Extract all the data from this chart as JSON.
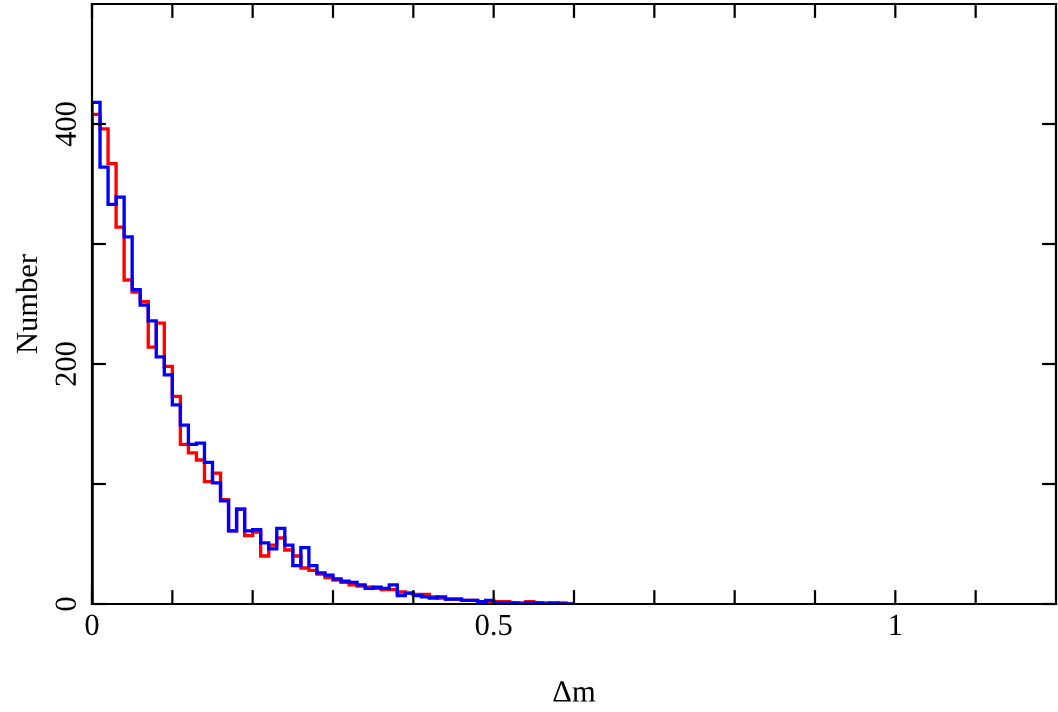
{
  "chart_data": {
    "type": "histogram",
    "xlabel": "Δm",
    "ylabel": "Number",
    "bins": [
      0,
      0.01,
      0.02,
      0.03,
      0.04,
      0.05,
      0.06,
      0.07,
      0.08,
      0.09,
      0.1,
      0.11,
      0.12,
      0.13,
      0.14,
      0.15,
      0.16,
      0.17,
      0.18,
      0.19,
      0.2,
      0.21,
      0.22,
      0.23,
      0.24,
      0.25,
      0.26,
      0.27,
      0.28,
      0.29,
      0.3,
      0.31,
      0.32,
      0.33,
      0.34,
      0.35,
      0.36,
      0.37,
      0.38,
      0.39,
      0.4,
      0.41,
      0.42,
      0.43,
      0.44,
      0.45,
      0.46,
      0.47,
      0.48,
      0.49,
      0.5,
      0.51,
      0.52,
      0.53,
      0.54,
      0.55,
      0.56,
      0.57,
      0.58,
      0.59,
      0.6
    ],
    "series": [
      {
        "color": "#ff0000",
        "values": [
          408,
          396,
          367,
          314,
          270,
          260,
          252,
          214,
          234,
          198,
          173,
          133,
          126,
          120,
          102,
          109,
          87,
          61,
          79,
          57,
          60,
          40,
          49,
          55,
          45,
          40,
          30,
          28,
          25,
          22,
          20,
          18,
          16,
          15,
          14,
          13,
          12,
          12,
          10,
          9,
          8,
          8,
          6,
          5,
          4,
          4,
          3,
          3,
          2,
          2,
          2,
          2,
          1,
          1,
          2,
          1,
          1,
          0,
          1,
          0
        ]
      },
      {
        "color": "#0000ff",
        "values": [
          418,
          364,
          333,
          339,
          306,
          262,
          249,
          236,
          206,
          191,
          166,
          149,
          133,
          134,
          118,
          101,
          86,
          61,
          79,
          61,
          62,
          51,
          46,
          63,
          49,
          32,
          47,
          32,
          26,
          24,
          21,
          19,
          18,
          16,
          13,
          14,
          13,
          16,
          7,
          9,
          7,
          6,
          5,
          6,
          4,
          4,
          3,
          3,
          2,
          3,
          1,
          1,
          1,
          0,
          1,
          1,
          0,
          1,
          0,
          0
        ]
      }
    ],
    "xlim": [
      0,
      1.2
    ],
    "ylim": [
      0,
      500
    ],
    "xticks": [
      0,
      {
        "value": 0.1,
        "label": null
      },
      {
        "value": 0.2,
        "label": null
      },
      {
        "value": 0.3,
        "label": null
      },
      {
        "value": 0.4,
        "label": null
      },
      0.5,
      {
        "value": 0.6,
        "label": null
      },
      {
        "value": 0.7,
        "label": null
      },
      {
        "value": 0.8,
        "label": null
      },
      {
        "value": 0.9,
        "label": null
      },
      1,
      {
        "value": 1.1,
        "label": null
      }
    ],
    "yticks": [
      0,
      {
        "value": 100,
        "label": null
      },
      200,
      {
        "value": 300,
        "label": null
      },
      400
    ],
    "grid": false
  }
}
